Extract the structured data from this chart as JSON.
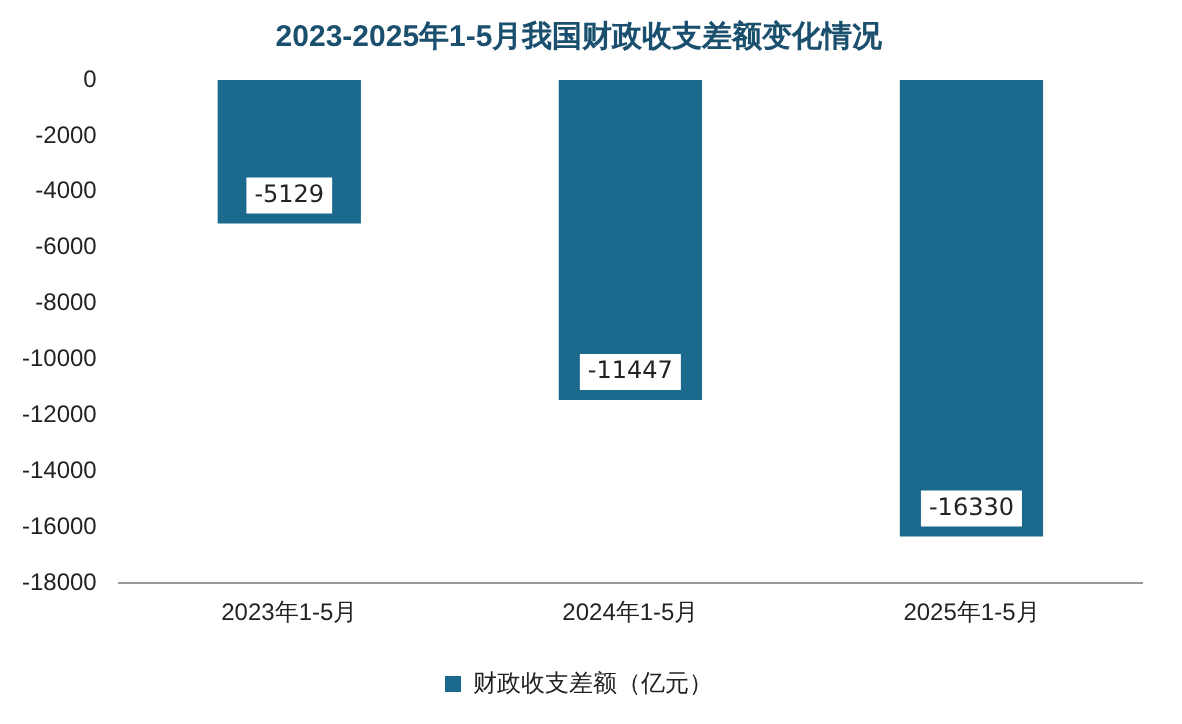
{
  "chart_data": {
    "type": "bar",
    "title": "2023-2025年1-5月我国财政收支差额变化情况",
    "categories": [
      "2023年1-5月",
      "2024年1-5月",
      "2025年1-5月"
    ],
    "series": [
      {
        "name": "财政收支差额（亿元）",
        "color": "#1b6a8e",
        "values": [
          -5129,
          -11447,
          -16330
        ]
      }
    ],
    "ylim": [
      -18000,
      0
    ],
    "yticks": [
      0,
      -2000,
      -4000,
      -6000,
      -8000,
      -10000,
      -12000,
      -14000,
      -16000,
      -18000
    ],
    "grid": false,
    "legend": "bottom",
    "data_labels": true
  }
}
